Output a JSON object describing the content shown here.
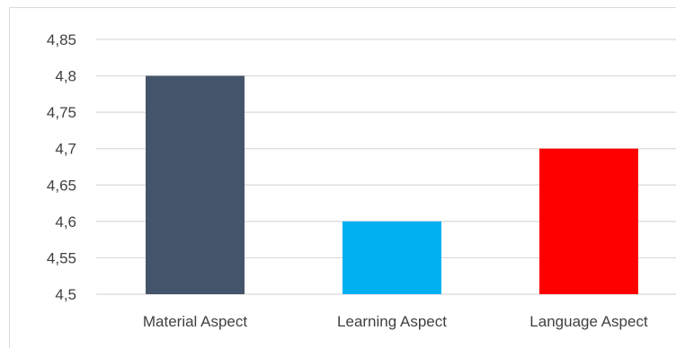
{
  "chart_data": {
    "type": "bar",
    "categories": [
      "Material Aspect",
      "Learning Aspect",
      "Language Aspect"
    ],
    "values": [
      4.8,
      4.6,
      4.7
    ],
    "colors": [
      "#44546a",
      "#00b0f0",
      "#ff0000"
    ],
    "ylim": [
      4.5,
      4.85
    ],
    "yticks": [
      4.5,
      4.55,
      4.6,
      4.65,
      4.7,
      4.75,
      4.8,
      4.85
    ],
    "ytick_labels": [
      "4,5",
      "4,55",
      "4,6",
      "4,65",
      "4,7",
      "4,75",
      "4,8",
      "4,85"
    ],
    "grid": true,
    "gridline_color": "#d9d9d9",
    "title": "",
    "xlabel": "",
    "ylabel": ""
  }
}
